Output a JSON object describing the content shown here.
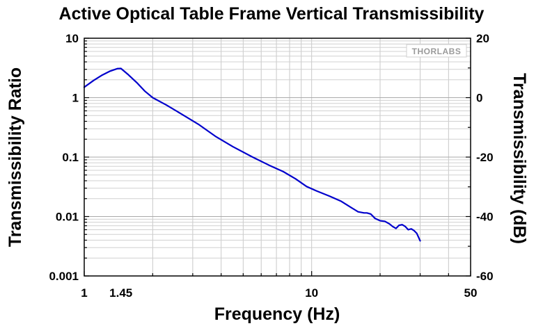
{
  "chart_data": {
    "type": "line",
    "title": "Active Optical Table Frame Vertical Transmissibility",
    "xlabel": "Frequency (Hz)",
    "ylabel": "Transmissibility Ratio",
    "y2label": "Transmissibility (dB)",
    "x_scale": "log",
    "y_scale": "log",
    "xlim": [
      1,
      50
    ],
    "ylim": [
      0.001,
      10
    ],
    "y2lim": [
      -60,
      20
    ],
    "x_ticks": [
      "1",
      "1.45",
      "10",
      "50"
    ],
    "y_ticks": [
      "0.001",
      "0.01",
      "0.1",
      "1",
      "10"
    ],
    "y2_ticks": [
      "-60",
      "-40",
      "-20",
      "0",
      "20"
    ],
    "grid": true,
    "line_color": "#0000cc",
    "watermark": "THORLABS",
    "series": [
      {
        "x": [
          1.0,
          1.1,
          1.2,
          1.3,
          1.4,
          1.45,
          1.55,
          1.7,
          1.85,
          2.0,
          2.3,
          2.7,
          3.2,
          3.8,
          4.5,
          5.5,
          6.5,
          7.5,
          8.5,
          9.5,
          10.5,
          12,
          13.5,
          15,
          16,
          17,
          17.5,
          18.2,
          19,
          20,
          21,
          22,
          22.7,
          23.5,
          24.2,
          25,
          25.8,
          26.6,
          27.4,
          28.2,
          29,
          30
        ],
        "y": [
          1.5,
          1.95,
          2.4,
          2.8,
          3.08,
          3.1,
          2.5,
          1.8,
          1.28,
          1.0,
          0.75,
          0.52,
          0.35,
          0.22,
          0.15,
          0.1,
          0.073,
          0.057,
          0.043,
          0.032,
          0.027,
          0.022,
          0.018,
          0.014,
          0.012,
          0.0115,
          0.0115,
          0.011,
          0.0093,
          0.0085,
          0.0083,
          0.0075,
          0.0068,
          0.0063,
          0.0071,
          0.0073,
          0.0068,
          0.006,
          0.0062,
          0.0058,
          0.0052,
          0.0039
        ]
      }
    ]
  }
}
